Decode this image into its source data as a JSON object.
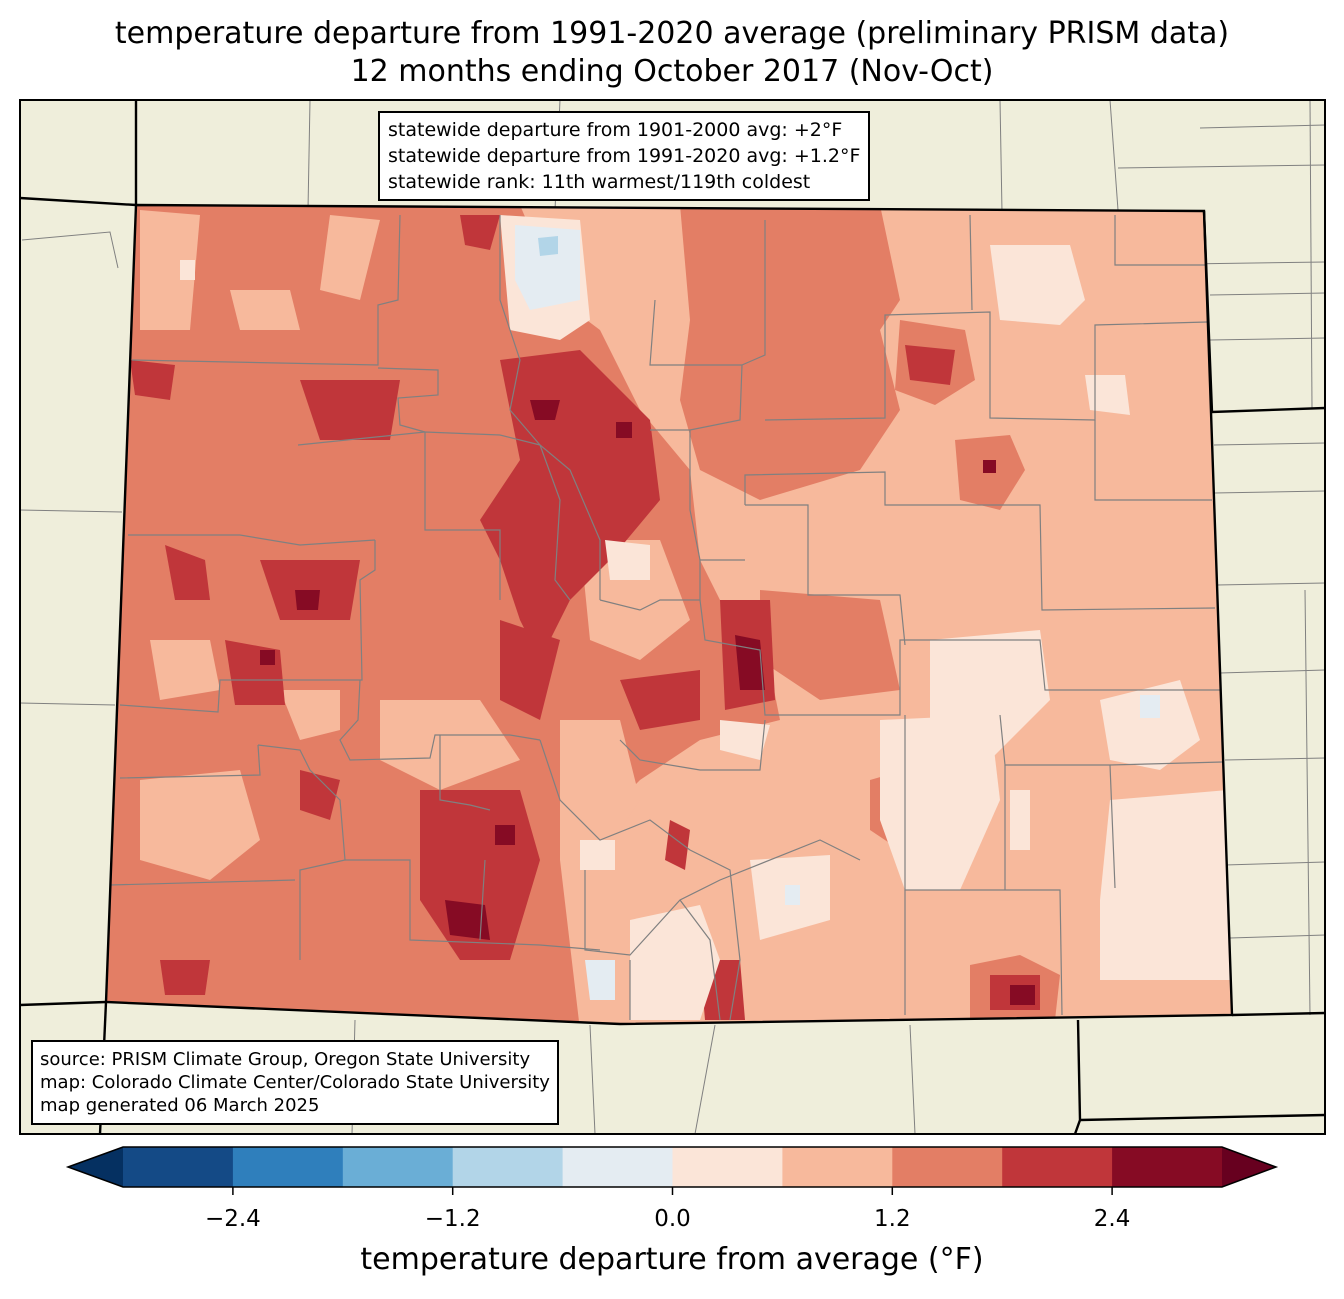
{
  "title": {
    "line1": "temperature departure from 1991-2020 average (preliminary PRISM data)",
    "line2": "12 months ending October 2017 (Nov-Oct)"
  },
  "stats_box": {
    "line1": "statewide departure from 1901-2000 avg: +2°F",
    "line2": "statewide departure from 1991-2020 avg: +1.2°F",
    "line3": "statewide rank: 11th warmest/119th coldest"
  },
  "source_box": {
    "line1": "source: PRISM Climate Group, Oregon State University",
    "line2": "map: Colorado Climate Center/Colorado State University",
    "line3": "map generated 06 March 2025"
  },
  "colorbar": {
    "label": "temperature departure from average (°F)",
    "ticks": [
      "−2.4",
      "−1.2",
      "0.0",
      "1.2",
      "2.4"
    ],
    "tick_values": [
      -2.4,
      -1.2,
      0.0,
      1.2,
      2.4
    ],
    "boundaries": [
      -3.0,
      -2.4,
      -1.8,
      -1.2,
      -0.6,
      0.0,
      0.6,
      1.2,
      1.8,
      2.4,
      3.0
    ],
    "colors": [
      "#053061",
      "#144a86",
      "#2f7fbc",
      "#6aaed6",
      "#b2d5e8",
      "#e4ecf2",
      "#fbe5d8",
      "#f7b99c",
      "#e37e65",
      "#c0363a",
      "#860b24",
      "#67001f"
    ]
  },
  "map_colors": {
    "background": "#efeedb",
    "state_outline": "#000000",
    "county_line": "#808080"
  }
}
